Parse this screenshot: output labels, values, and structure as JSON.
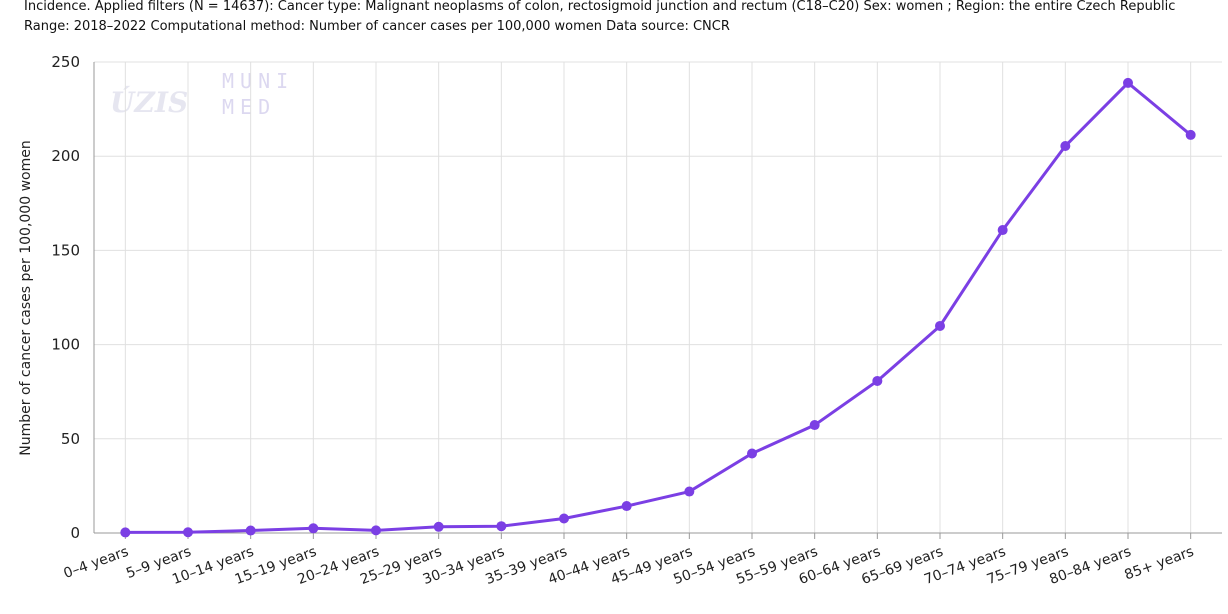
{
  "chart_data": {
    "type": "line",
    "title": "Incidence. Applied filters (N = 14637): Cancer type: Malignant neoplasms of colon, rectosigmoid junction and rectum (C18–C20) Sex: women ; Region: the entire Czech Republic",
    "subtitle": "Range: 2018–2022 Computational method: Number of cancer cases per 100,000 women Data source: CNCR",
    "watermarks": [
      "ÚZIS",
      "MUNI",
      "MED"
    ],
    "y_label": "Number of cancer cases per 100,000 women",
    "categories": [
      "0–4 years",
      "5–9 years",
      "10–14 years",
      "15–19 years",
      "20–24 years",
      "25–29 years",
      "30–34 years",
      "35–39 years",
      "40–44 years",
      "45–49 years",
      "50–54 years",
      "55–59 years",
      "60–64 years",
      "65–69 years",
      "70–74 years",
      "75–79 years",
      "80–84 years",
      "85+ years"
    ],
    "values": [
      0.3,
      0.4,
      1.3,
      2.5,
      1.4,
      3.3,
      3.6,
      7.7,
      14.3,
      22.0,
      42.2,
      57.3,
      80.7,
      109.9,
      160.8,
      205.4,
      238.9,
      211.3
    ],
    "color": "#7b3fe4",
    "ylim": [
      0,
      250
    ],
    "yticks": [
      0,
      50,
      100,
      150,
      200,
      250
    ],
    "grid": true
  }
}
